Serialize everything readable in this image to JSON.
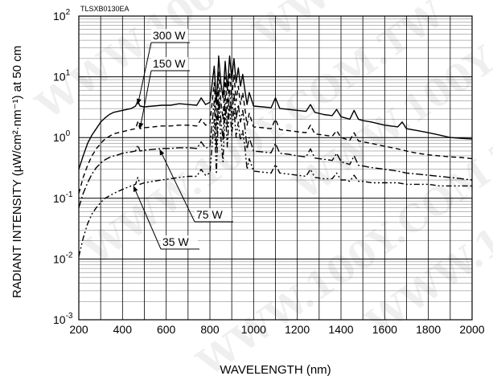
{
  "chart_data": {
    "type": "line",
    "code_label": "TLSXB0130EA",
    "xlabel": "WAVELENGTH (nm)",
    "ylabel": "RADIANT INTENSITY (µW/cm²·nm⁻¹) at 50 cm",
    "xlim": [
      200,
      2000
    ],
    "ylim": [
      0.001,
      100
    ],
    "y_scale": "log",
    "grid": true,
    "x_ticks": [
      200,
      400,
      600,
      800,
      1000,
      1200,
      1400,
      1600,
      1800,
      2000
    ],
    "y_ticks": [
      {
        "value": 0.001,
        "base": "10",
        "exp": "-3"
      },
      {
        "value": 0.01,
        "base": "10",
        "exp": "-2"
      },
      {
        "value": 0.1,
        "base": "10",
        "exp": "-1"
      },
      {
        "value": 1,
        "base": "10",
        "exp": "0"
      },
      {
        "value": 10,
        "base": "10",
        "exp": "1"
      },
      {
        "value": 100,
        "base": "10",
        "exp": "2"
      }
    ],
    "watermark": "WWW.100Y.COM.TW",
    "series": [
      {
        "name": "300 W",
        "dash": "solid",
        "x": [
          200,
          220,
          240,
          260,
          280,
          300,
          320,
          340,
          360,
          380,
          400,
          420,
          440,
          460,
          470,
          480,
          500,
          540,
          580,
          620,
          660,
          700,
          740,
          760,
          780,
          800,
          820,
          830,
          840,
          850,
          860,
          870,
          880,
          890,
          900,
          910,
          920,
          930,
          940,
          950,
          960,
          970,
          980,
          1000,
          1040,
          1080,
          1100,
          1120,
          1160,
          1200,
          1240,
          1260,
          1280,
          1320,
          1360,
          1380,
          1400,
          1420,
          1440,
          1460,
          1480,
          1500,
          1540,
          1600,
          1660,
          1680,
          1700,
          1750,
          1800,
          1850,
          1900,
          1950,
          2000
        ],
        "y": [
          0.3,
          0.5,
          0.8,
          1.1,
          1.4,
          1.8,
          2.1,
          2.4,
          2.6,
          2.7,
          2.8,
          2.9,
          3.0,
          3.3,
          4.0,
          3.3,
          3.2,
          3.3,
          3.4,
          3.4,
          3.6,
          3.5,
          3.4,
          4.5,
          3.5,
          3.8,
          15.0,
          3.5,
          22.0,
          8.0,
          4.5,
          18.0,
          6.0,
          22.0,
          9.0,
          20.0,
          8.0,
          14.0,
          7.0,
          11.0,
          6.0,
          3.5,
          5.5,
          3.3,
          3.2,
          3.1,
          4.5,
          3.0,
          2.9,
          2.8,
          2.7,
          3.5,
          2.6,
          2.4,
          2.3,
          2.9,
          2.2,
          2.1,
          2.0,
          2.8,
          2.0,
          1.9,
          1.8,
          1.6,
          1.5,
          1.8,
          1.4,
          1.3,
          1.2,
          1.1,
          1.0,
          0.97,
          0.95
        ]
      },
      {
        "name": "150 W",
        "dash": "dashed",
        "x": [
          200,
          220,
          240,
          260,
          280,
          300,
          320,
          340,
          360,
          380,
          400,
          420,
          440,
          460,
          470,
          480,
          500,
          540,
          580,
          620,
          660,
          700,
          740,
          760,
          780,
          800,
          820,
          830,
          840,
          850,
          860,
          870,
          880,
          890,
          900,
          910,
          920,
          930,
          940,
          950,
          960,
          970,
          980,
          1000,
          1040,
          1080,
          1100,
          1120,
          1160,
          1200,
          1240,
          1260,
          1280,
          1320,
          1360,
          1380,
          1400,
          1420,
          1440,
          1460,
          1480,
          1500,
          1540,
          1600,
          1660,
          1700,
          1750,
          1800,
          1850,
          1900,
          1950,
          2000
        ],
        "y": [
          0.12,
          0.22,
          0.35,
          0.5,
          0.65,
          0.8,
          0.95,
          1.05,
          1.15,
          1.2,
          1.25,
          1.3,
          1.35,
          1.4,
          1.8,
          1.4,
          1.45,
          1.5,
          1.55,
          1.55,
          1.6,
          1.6,
          1.55,
          2.0,
          1.6,
          1.7,
          8.0,
          1.6,
          12.0,
          4.0,
          2.0,
          10.0,
          3.0,
          12.0,
          4.5,
          11.0,
          4.0,
          7.0,
          3.5,
          5.5,
          3.0,
          1.6,
          2.5,
          1.5,
          1.45,
          1.4,
          2.0,
          1.35,
          1.3,
          1.25,
          1.2,
          1.6,
          1.15,
          1.1,
          1.05,
          1.3,
          1.0,
          0.95,
          0.9,
          1.2,
          0.88,
          0.85,
          0.8,
          0.72,
          0.65,
          0.6,
          0.55,
          0.52,
          0.5,
          0.48,
          0.47,
          0.45
        ]
      },
      {
        "name": "75 W",
        "dash": "dash-dot",
        "x": [
          200,
          220,
          240,
          260,
          280,
          300,
          320,
          340,
          360,
          380,
          400,
          420,
          440,
          460,
          470,
          480,
          500,
          540,
          580,
          620,
          660,
          700,
          740,
          760,
          780,
          800,
          820,
          830,
          840,
          850,
          860,
          870,
          880,
          890,
          900,
          910,
          920,
          930,
          940,
          950,
          960,
          970,
          980,
          1000,
          1040,
          1080,
          1100,
          1120,
          1160,
          1200,
          1240,
          1260,
          1280,
          1320,
          1360,
          1380,
          1400,
          1420,
          1440,
          1460,
          1480,
          1500,
          1540,
          1600,
          1660,
          1700,
          1750,
          1800,
          1850,
          1900,
          1950,
          2000
        ],
        "y": [
          0.07,
          0.12,
          0.18,
          0.25,
          0.32,
          0.38,
          0.43,
          0.47,
          0.5,
          0.52,
          0.55,
          0.57,
          0.58,
          0.6,
          0.75,
          0.6,
          0.62,
          0.64,
          0.66,
          0.66,
          0.68,
          0.68,
          0.66,
          0.85,
          0.67,
          0.7,
          4.0,
          0.65,
          6.0,
          2.0,
          0.9,
          5.0,
          1.5,
          6.0,
          2.2,
          5.5,
          2.0,
          3.5,
          1.8,
          2.8,
          1.5,
          0.65,
          1.0,
          0.6,
          0.58,
          0.56,
          0.8,
          0.55,
          0.53,
          0.5,
          0.48,
          0.65,
          0.46,
          0.44,
          0.42,
          0.55,
          0.4,
          0.38,
          0.36,
          0.5,
          0.35,
          0.34,
          0.32,
          0.3,
          0.28,
          0.26,
          0.25,
          0.24,
          0.23,
          0.22,
          0.21,
          0.2
        ]
      },
      {
        "name": "35 W",
        "dash": "dash-dot-dot",
        "x": [
          200,
          220,
          240,
          260,
          280,
          300,
          320,
          340,
          360,
          380,
          400,
          420,
          440,
          460,
          470,
          480,
          500,
          540,
          580,
          620,
          660,
          700,
          740,
          760,
          780,
          800,
          820,
          830,
          840,
          850,
          860,
          870,
          880,
          890,
          900,
          910,
          920,
          930,
          940,
          950,
          960,
          970,
          980,
          1000,
          1040,
          1080,
          1100,
          1120,
          1160,
          1200,
          1240,
          1260,
          1280,
          1320,
          1360,
          1380,
          1400,
          1420,
          1440,
          1460,
          1480,
          1500,
          1540,
          1600,
          1660,
          1700,
          1750,
          1800,
          1850,
          1900,
          1950,
          2000
        ],
        "y": [
          0.011,
          0.022,
          0.038,
          0.055,
          0.07,
          0.085,
          0.1,
          0.11,
          0.12,
          0.13,
          0.14,
          0.15,
          0.16,
          0.17,
          0.22,
          0.17,
          0.18,
          0.19,
          0.2,
          0.21,
          0.22,
          0.23,
          0.23,
          0.3,
          0.24,
          0.26,
          2.0,
          0.25,
          3.5,
          1.0,
          0.4,
          3.0,
          0.7,
          3.5,
          1.1,
          3.0,
          1.0,
          1.8,
          0.9,
          1.3,
          0.7,
          0.3,
          0.45,
          0.28,
          0.27,
          0.26,
          0.36,
          0.26,
          0.25,
          0.24,
          0.23,
          0.3,
          0.22,
          0.21,
          0.21,
          0.26,
          0.2,
          0.2,
          0.19,
          0.24,
          0.19,
          0.19,
          0.18,
          0.18,
          0.18,
          0.17,
          0.17,
          0.17,
          0.16,
          0.16,
          0.16,
          0.16
        ]
      }
    ],
    "callouts": [
      {
        "series": "300 W",
        "label": "300 W",
        "x": 470,
        "y": 3.5,
        "dir": "up-right"
      },
      {
        "series": "150 W",
        "label": "150 W",
        "x": 480,
        "y": 1.4,
        "dir": "up-right"
      },
      {
        "series": "75 W",
        "label": "75 W",
        "x": 570,
        "y": 0.64,
        "dir": "down-right"
      },
      {
        "series": "35 W",
        "label": "35 W",
        "x": 450,
        "y": 0.16,
        "dir": "down-right"
      }
    ]
  }
}
